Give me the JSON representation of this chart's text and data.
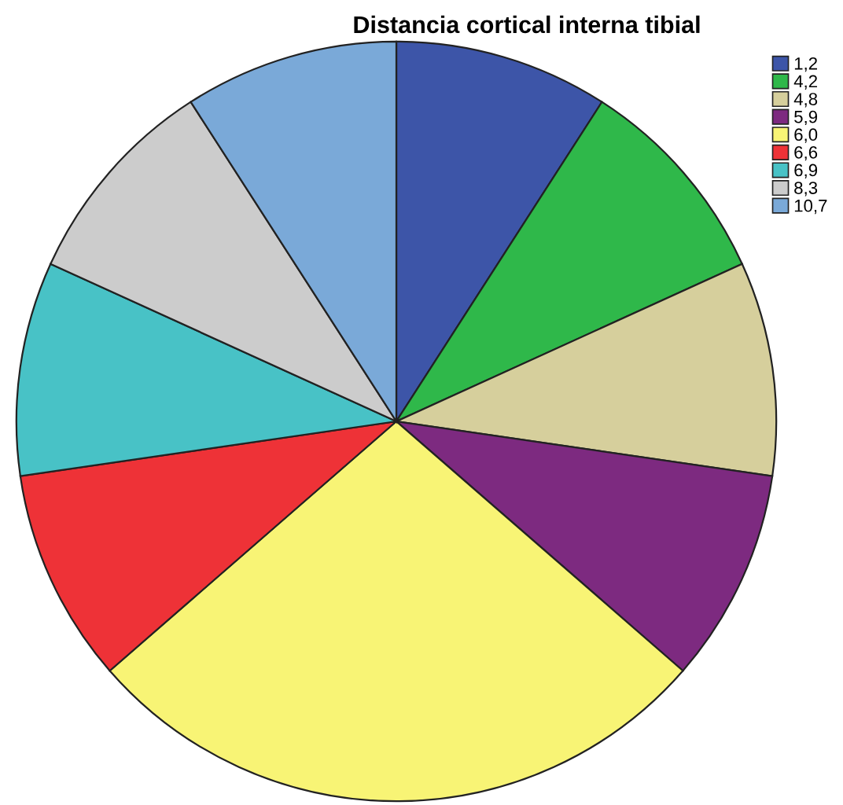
{
  "chart_data": {
    "type": "pie",
    "title": "Distancia cortical interna tibial",
    "categories": [
      "1,2",
      "4,2",
      "4,8",
      "5,9",
      "6,0",
      "6,6",
      "6,9",
      "8,3",
      "10,7"
    ],
    "values": [
      9.1,
      9.1,
      9.1,
      9.1,
      27.2,
      9.1,
      9.1,
      9.1,
      9.1
    ],
    "colors": [
      "#3d55a8",
      "#2fb84a",
      "#d6cf9c",
      "#7d2a80",
      "#f8f475",
      "#ee3237",
      "#48c2c6",
      "#cccccc",
      "#7aa9d8"
    ],
    "legend": "top right"
  }
}
